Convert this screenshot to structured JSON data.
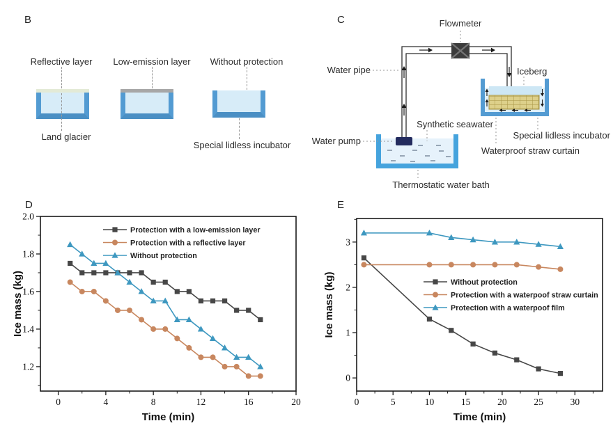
{
  "figure": {
    "panels": {
      "b": {
        "label": "B",
        "incubators": [
          {
            "top_label": "Reflective layer",
            "layer_color": "#e3ead6"
          },
          {
            "top_label": "Low-emission layer",
            "layer_color": "#a7a7a7"
          },
          {
            "top_label": "Without protection",
            "layer_color": ""
          }
        ],
        "land_glacier_label": "Land glacier",
        "incubator_label": "Special lidless incubator"
      },
      "c": {
        "label": "C",
        "labels": {
          "flowmeter": "Flowmeter",
          "water_pipe": "Water pipe",
          "iceberg": "Iceberg",
          "synthetic_seawater": "Synthetic seawater",
          "special_lidless_incubator": "Special lidless incubator",
          "waterproof_straw_curtain": "Waterproof straw curtain",
          "water_pump": "Water pump",
          "thermostatic_water_bath": "Thermostatic water bath"
        }
      },
      "d": {
        "label": "D"
      },
      "e": {
        "label": "E"
      }
    },
    "colors": {
      "container_wall": "#539bd2",
      "container_fill": "#d7ecf8",
      "bath_wall": "#45a3dd",
      "bath_fill": "#e6f2fb",
      "reflective_layer": "#e3ead6",
      "low_emission_layer": "#a7a7a7",
      "straw_curtain": "#ddd08a",
      "iceberg": "#cde7f5",
      "water_pump": "#232b5e",
      "flowmeter": "#3c3c3c",
      "series_gray": "#474747",
      "series_orange": "#c8875f",
      "series_blue": "#3e98c0"
    }
  },
  "chart_data": [
    {
      "id": "d",
      "type": "line",
      "title": "",
      "xlabel": "Time (min)",
      "ylabel": "Ice mass (kg)",
      "xlim": [
        -1.5,
        20
      ],
      "ylim": [
        1.07,
        2.0
      ],
      "grid": false,
      "legend_position": "upper-left-inside",
      "xticks": [
        0,
        4,
        8,
        12,
        16,
        20
      ],
      "xtick_labels": [
        "0",
        "4",
        "8",
        "12",
        "16",
        "20"
      ],
      "xminor": [
        2,
        6,
        10,
        14,
        18
      ],
      "yticks": [
        1.2,
        1.4,
        1.6,
        1.8,
        2.0
      ],
      "ytick_labels": [
        "1.2",
        "1.4",
        "1.6",
        "1.8",
        "2.0"
      ],
      "yminor": [
        1.1,
        1.3,
        1.5,
        1.7,
        1.9
      ],
      "x": [
        1,
        2,
        3,
        4,
        5,
        6,
        7,
        8,
        9,
        10,
        11,
        12,
        13,
        14,
        15,
        16,
        17
      ],
      "series": [
        {
          "name": "Protection with a low-emission layer",
          "marker": "square",
          "color": "#474747",
          "values": [
            1.75,
            1.7,
            1.7,
            1.7,
            1.7,
            1.7,
            1.7,
            1.65,
            1.65,
            1.6,
            1.6,
            1.55,
            1.55,
            1.55,
            1.5,
            1.5,
            1.45
          ]
        },
        {
          "name": "Protection with a reflective layer",
          "marker": "circle",
          "color": "#c8875f",
          "values": [
            1.65,
            1.6,
            1.6,
            1.55,
            1.5,
            1.5,
            1.45,
            1.4,
            1.4,
            1.35,
            1.3,
            1.25,
            1.25,
            1.2,
            1.2,
            1.15,
            1.15
          ]
        },
        {
          "name": "Without protection",
          "marker": "triangle",
          "color": "#3e98c0",
          "values": [
            1.85,
            1.8,
            1.75,
            1.75,
            1.7,
            1.65,
            1.6,
            1.55,
            1.55,
            1.45,
            1.45,
            1.4,
            1.35,
            1.3,
            1.25,
            1.25,
            1.2
          ]
        }
      ]
    },
    {
      "id": "e",
      "type": "line",
      "title": "",
      "xlabel": "Time (min)",
      "ylabel": "Ice mass (kg)",
      "xlim": [
        0,
        33.8
      ],
      "ylim": [
        -0.29,
        3.52
      ],
      "grid": false,
      "legend_position": "middle-inside",
      "xticks": [
        0,
        5,
        10,
        15,
        20,
        25,
        30
      ],
      "xtick_labels": [
        "0",
        "5",
        "10",
        "15",
        "20",
        "25",
        "30"
      ],
      "xminor": [
        2.5,
        7.5,
        12.5,
        17.5,
        22.5,
        27.5,
        32.5
      ],
      "yticks": [
        0,
        1,
        2,
        3
      ],
      "ytick_labels": [
        "0",
        "1",
        "2",
        "3"
      ],
      "yminor": [
        0.5,
        1.5,
        2.5,
        3.5
      ],
      "x": [
        1,
        10,
        13,
        16,
        19,
        22,
        25,
        28
      ],
      "series": [
        {
          "name": "Without protection",
          "marker": "square",
          "color": "#474747",
          "values": [
            2.65,
            1.3,
            1.05,
            0.75,
            0.55,
            0.4,
            0.2,
            0.1
          ]
        },
        {
          "name": "Protection with a waterpoof straw curtain",
          "marker": "circle",
          "color": "#c8875f",
          "values": [
            2.5,
            2.5,
            2.5,
            2.5,
            2.5,
            2.5,
            2.45,
            2.4
          ]
        },
        {
          "name": "Protection with a waterpoof film",
          "marker": "triangle",
          "color": "#3e98c0",
          "values": [
            3.2,
            3.2,
            3.1,
            3.05,
            3.0,
            3.0,
            2.95,
            2.9
          ]
        }
      ]
    }
  ]
}
